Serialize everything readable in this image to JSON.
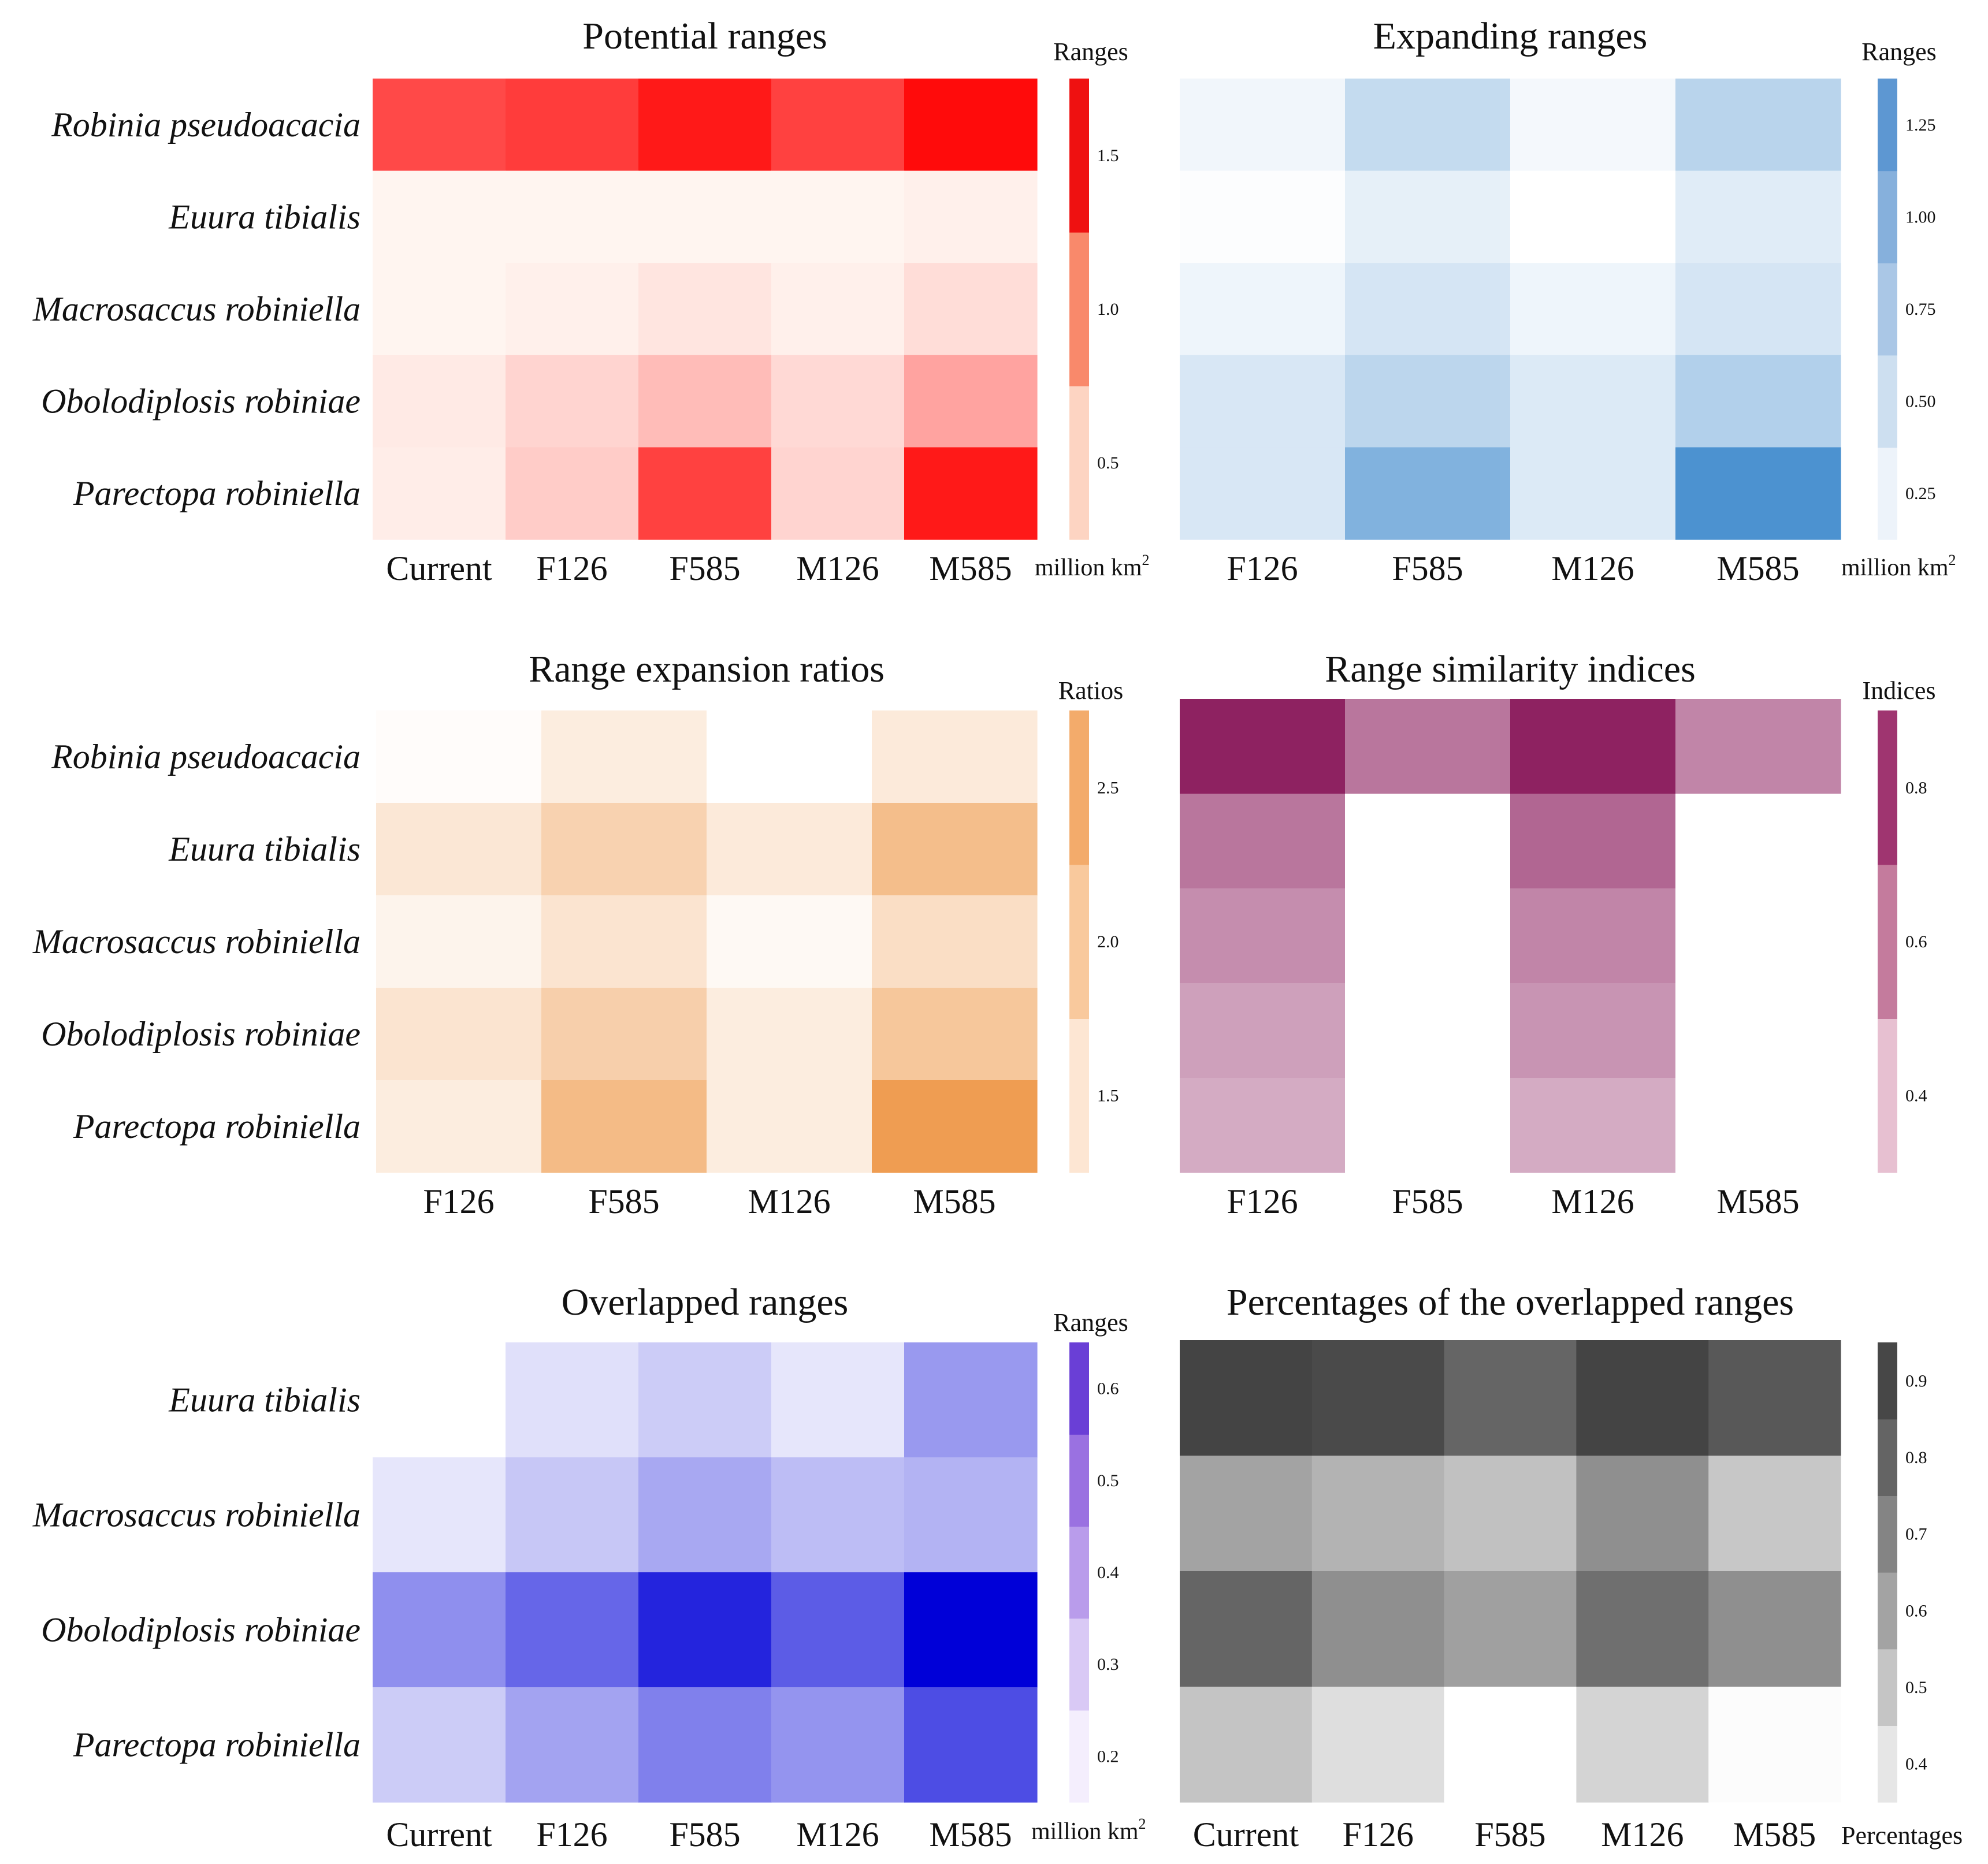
{
  "chart_data": [
    {
      "id": "potential",
      "type": "heatmap",
      "title": "Potential ranges",
      "rows": [
        "Robinia pseudoacacia",
        "Euura tibialis",
        "Macrosaccus robiniella",
        "Obolodiplosis robiniae",
        "Parectopa robiniella"
      ],
      "columns": [
        "Current",
        "F126",
        "F585",
        "M126",
        "M585"
      ],
      "values": [
        [
          1.3,
          1.38,
          1.6,
          1.35,
          1.68
        ],
        [
          0.08,
          0.15,
          0.2,
          0.12,
          0.28
        ],
        [
          0.2,
          0.28,
          0.35,
          0.28,
          0.4
        ],
        [
          0.32,
          0.45,
          0.6,
          0.42,
          0.75
        ],
        [
          0.3,
          0.5,
          1.35,
          0.45,
          1.6
        ]
      ],
      "colorbar": {
        "title": "Ranges",
        "ticks": [
          "0.5",
          "1.0",
          "1.5"
        ],
        "tick_values": [
          0.5,
          1.0,
          1.5
        ],
        "vmin": 0.25,
        "vmax": 1.75,
        "unit": "million km",
        "unit_sup": "2",
        "low_color": "#fff5f0",
        "high_color": "#ff0000",
        "bands": [
          "#fdd4c2",
          "#f9896b",
          "#ef1111"
        ]
      }
    },
    {
      "id": "expanding",
      "type": "heatmap",
      "title": "Expanding ranges",
      "rows": [
        "Robinia pseudoacacia",
        "Euura tibialis",
        "Macrosaccus robiniella",
        "Obolodiplosis robiniae",
        "Parectopa robiniella"
      ],
      "columns": [
        "F126",
        "F585",
        "M126",
        "M585"
      ],
      "values": [
        [
          0.1,
          0.42,
          0.08,
          0.5
        ],
        [
          0.02,
          0.18,
          0.0,
          0.22
        ],
        [
          0.12,
          0.3,
          0.12,
          0.3
        ],
        [
          0.28,
          0.48,
          0.25,
          0.55
        ],
        [
          0.28,
          0.9,
          0.25,
          1.28
        ]
      ],
      "colorbar": {
        "title": "Ranges",
        "ticks": [
          "0.25",
          "0.50",
          "0.75",
          "1.00",
          "1.25"
        ],
        "tick_values": [
          0.25,
          0.5,
          0.75,
          1.0,
          1.25
        ],
        "vmin": 0.0,
        "vmax": 1.375,
        "unit": "million km",
        "unit_sup": "2",
        "low_color": "#ffffff",
        "high_color": "#3f8acc",
        "bands": [
          "#edf3fa",
          "#cddff0",
          "#aac7e6",
          "#86b0dc",
          "#5d97d2"
        ]
      }
    },
    {
      "id": "expansion_ratios",
      "type": "heatmap",
      "title": "Range expansion ratios",
      "rows": [
        "Robinia pseudoacacia",
        "Euura tibialis",
        "Macrosaccus robiniella",
        "Obolodiplosis robiniae",
        "Parectopa robiniella"
      ],
      "columns": [
        "F126",
        "F585",
        "M126",
        "M585"
      ],
      "values": [
        [
          1.05,
          1.3,
          1.0,
          1.35
        ],
        [
          1.4,
          1.75,
          1.35,
          2.1
        ],
        [
          1.18,
          1.45,
          1.1,
          1.55
        ],
        [
          1.45,
          1.8,
          1.3,
          1.95
        ],
        [
          1.3,
          2.15,
          1.3,
          2.65
        ]
      ],
      "colorbar": {
        "title": "Ratios",
        "ticks": [
          "1.5",
          "2.0",
          "2.5"
        ],
        "tick_values": [
          1.5,
          2.0,
          2.5
        ],
        "vmin": 1.0,
        "vmax": 2.75,
        "unit": "",
        "unit_sup": "",
        "low_color": "#ffffff",
        "high_color": "#ee9747",
        "bands": [
          "#fde6d3",
          "#f9c99d",
          "#f3ab6b"
        ]
      }
    },
    {
      "id": "similarity",
      "type": "heatmap",
      "title": "Range similarity indices",
      "rows": [
        "Robinia pseudoacacia",
        "Euura tibialis",
        "Macrosaccus robiniella",
        "Obolodiplosis robiniae",
        "Parectopa robiniella"
      ],
      "columns": [
        "F126",
        "F585",
        "M126",
        "M585"
      ],
      "values": [
        [
          0.88,
          0.66,
          0.88,
          0.62
        ],
        [
          0.66,
          0.3,
          0.7,
          0.18
        ],
        [
          0.6,
          0.28,
          0.62,
          0.3
        ],
        [
          0.55,
          0.26,
          0.58,
          0.24
        ],
        [
          0.52,
          0.12,
          0.52,
          0.0
        ]
      ],
      "colorbar": {
        "title": "Indices",
        "ticks": [
          "0.4",
          "0.6",
          "0.8"
        ],
        "tick_values": [
          0.4,
          0.6,
          0.8
        ],
        "vmin": 0.3,
        "vmax": 0.9,
        "unit": "",
        "unit_sup": "",
        "low_color": "#ffffff",
        "high_color": "#8a1a5c",
        "bands": [
          "#e7c0d1",
          "#c47b9d",
          "#9f3570"
        ]
      }
    },
    {
      "id": "overlapped",
      "type": "heatmap",
      "title": "Overlapped ranges",
      "rows": [
        "Euura tibialis",
        "Macrosaccus robiniella",
        "Obolodiplosis robiniae",
        "Parectopa robiniella"
      ],
      "columns": [
        "Current",
        "F126",
        "F585",
        "M126",
        "M585"
      ],
      "values": [
        [
          0.13,
          0.21,
          0.25,
          0.2,
          0.35
        ],
        [
          0.2,
          0.26,
          0.32,
          0.28,
          0.3
        ],
        [
          0.37,
          0.45,
          0.58,
          0.47,
          0.65
        ],
        [
          0.25,
          0.33,
          0.4,
          0.36,
          0.5
        ]
      ],
      "colorbar": {
        "title": "Ranges",
        "ticks": [
          "0.2",
          "0.3",
          "0.4",
          "0.5",
          "0.6"
        ],
        "tick_values": [
          0.2,
          0.3,
          0.4,
          0.5,
          0.6
        ],
        "vmin": 0.15,
        "vmax": 0.65,
        "unit": "million km",
        "unit_sup": "2",
        "low_color": "#ffffff",
        "high_color": "#0000d8",
        "bands": [
          "#f4eefd",
          "#d9c9f5",
          "#b99ceb",
          "#9a71e1",
          "#6a3fd6"
        ]
      }
    },
    {
      "id": "percentages",
      "type": "heatmap",
      "title": "Percentages of the overlapped ranges",
      "rows": [
        "Euura tibialis",
        "Macrosaccus robiniella",
        "Obolodiplosis robiniae",
        "Parectopa robiniella"
      ],
      "columns": [
        "Current",
        "F126",
        "F585",
        "M126",
        "M585"
      ],
      "values": [
        [
          0.92,
          0.9,
          0.82,
          0.92,
          0.86
        ],
        [
          0.63,
          0.58,
          0.54,
          0.69,
          0.52
        ],
        [
          0.82,
          0.69,
          0.64,
          0.79,
          0.69
        ],
        [
          0.53,
          0.45,
          0.3,
          0.48,
          0.36
        ]
      ],
      "colorbar": {
        "title": "Percentages",
        "ticks": [
          "0.4",
          "0.5",
          "0.6",
          "0.7",
          "0.8",
          "0.9"
        ],
        "tick_values": [
          0.4,
          0.5,
          0.6,
          0.7,
          0.8,
          0.9
        ],
        "vmin": 0.35,
        "vmax": 0.95,
        "unit": "",
        "unit_sup": "",
        "low_color": "#ffffff",
        "high_color": "#3a3a3a",
        "bands": [
          "#e6e6e6",
          "#c5c5c5",
          "#a3a3a3",
          "#848484",
          "#646464",
          "#474747"
        ]
      }
    }
  ]
}
